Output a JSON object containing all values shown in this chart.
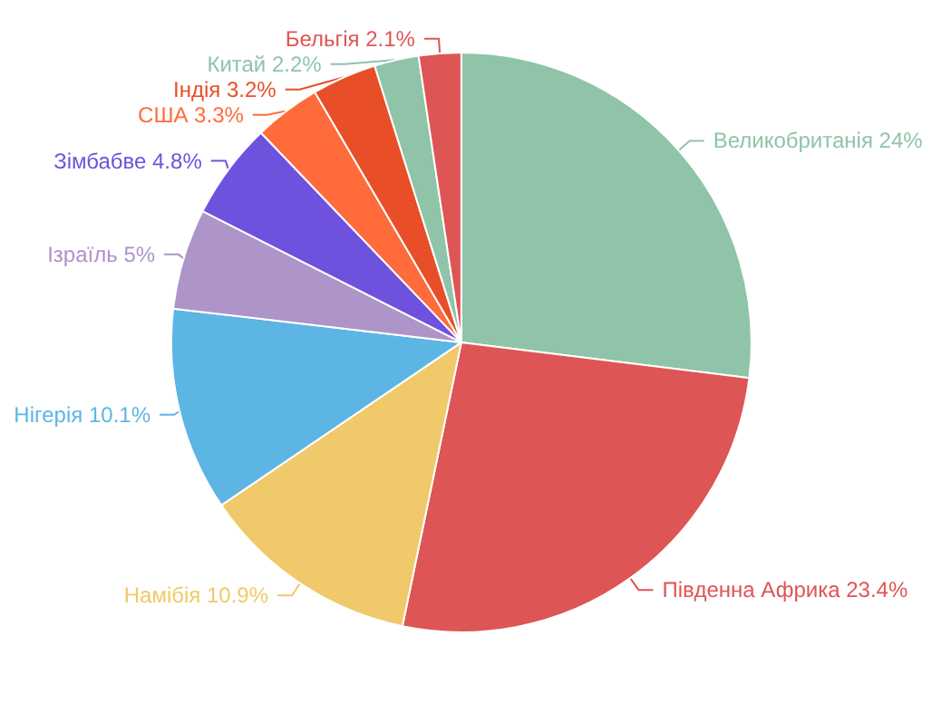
{
  "chart_data": {
    "type": "pie",
    "categories": [
      "Великобританія",
      "Південна Африка",
      "Намібія",
      "Нігерія",
      "Ізраїль",
      "Зімбабве",
      "США",
      "Індія",
      "Китай",
      "Бельгія"
    ],
    "values": [
      24,
      23.4,
      10.9,
      10.1,
      5,
      4.8,
      3.3,
      3.2,
      2.2,
      2.1
    ],
    "value_labels": [
      "24%",
      "23.4%",
      "10.9%",
      "10.1%",
      "5%",
      "4.8%",
      "3.3%",
      "3.2%",
      "2.2%",
      "2.1%"
    ],
    "colors": [
      "#8fc4a8",
      "#de5555",
      "#f0c96a",
      "#5db5e3",
      "#ad94c9",
      "#6e52dd",
      "#ff6b3b",
      "#e84e27",
      "#8fc4a8",
      "#de5555"
    ],
    "legend": false
  }
}
